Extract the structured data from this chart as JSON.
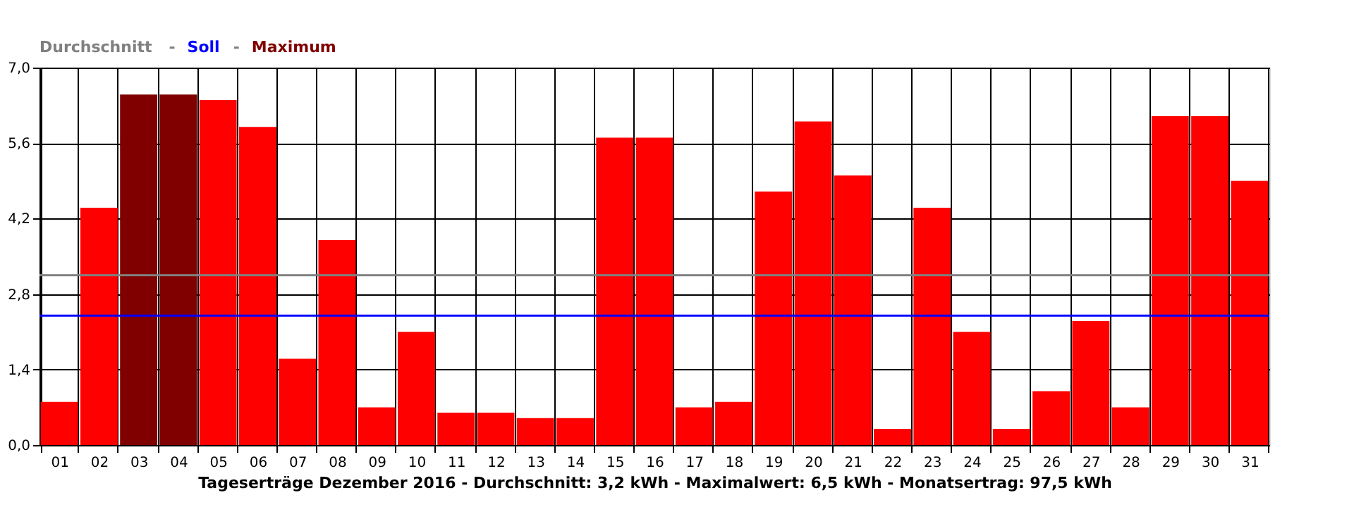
{
  "chart_data": {
    "type": "bar",
    "xlabel": "Tageserträge Dezember 2016 - Durchschnitt: 3,2 kWh - Maximalwert: 6,5 kWh - Monatsertrag: 97,5 kWh",
    "categories": [
      "01",
      "02",
      "03",
      "04",
      "05",
      "06",
      "07",
      "08",
      "09",
      "10",
      "11",
      "12",
      "13",
      "14",
      "15",
      "16",
      "17",
      "18",
      "19",
      "20",
      "21",
      "22",
      "23",
      "24",
      "25",
      "26",
      "27",
      "28",
      "29",
      "30",
      "31"
    ],
    "series": [
      {
        "color": "#ff0000",
        "values": [
          0.8,
          4.4,
          null,
          null,
          6.4,
          5.9,
          1.6,
          3.8,
          0.7,
          2.1,
          0.6,
          0.6,
          0.5,
          0.5,
          5.7,
          5.7,
          0.7,
          0.8,
          4.7,
          6.0,
          5.0,
          0.3,
          4.4,
          2.1,
          0.3,
          1.0,
          2.3,
          0.7,
          6.1,
          6.1,
          4.9
        ]
      },
      {
        "name": "Maximum",
        "color": "#800000",
        "values": [
          null,
          null,
          6.5,
          6.5,
          null,
          null,
          null,
          null,
          null,
          null,
          null,
          null,
          null,
          null,
          null,
          null,
          null,
          null,
          null,
          null,
          null,
          null,
          null,
          null,
          null,
          null,
          null,
          null,
          null,
          null,
          null
        ]
      }
    ],
    "ref_lines": [
      {
        "axis": "y",
        "value": 3.15,
        "label": "Durchschnitt",
        "color": "#808080"
      },
      {
        "axis": "y",
        "value": 2.4,
        "label": "Soll",
        "color": "#0000ff"
      }
    ],
    "ylim": [
      0,
      7
    ],
    "yticks": [
      {
        "value": 0,
        "label": "0,0"
      },
      {
        "value": 1.4,
        "label": "1,4"
      },
      {
        "value": 2.8,
        "label": "2,8"
      },
      {
        "value": 4.2,
        "label": "4,2"
      },
      {
        "value": 5.6,
        "label": "5,6"
      },
      {
        "value": 7,
        "label": "7,0"
      }
    ],
    "annotations": [
      "-",
      "-"
    ],
    "grid": true
  }
}
